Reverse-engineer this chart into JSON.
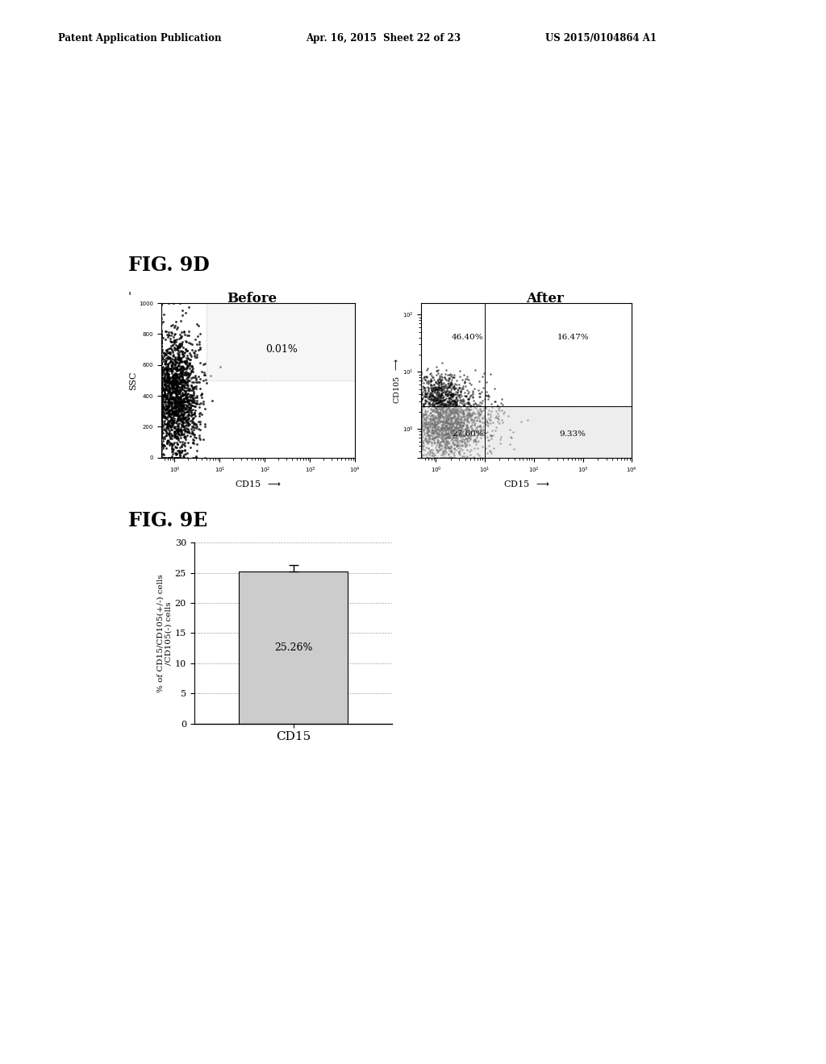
{
  "header_left": "Patent Application Publication",
  "header_mid": "Apr. 16, 2015  Sheet 22 of 23",
  "header_right": "US 2015/0104864 A1",
  "fig9d_label": "FIG. 9D",
  "fig9e_label": "FIG. 9E",
  "before_title": "Before",
  "after_title": "After",
  "before_pct": "0.01%",
  "after_pcts": [
    "46.40%",
    "16.47%",
    "27.60%",
    "9.33%"
  ],
  "before_xlabel": "CD15",
  "after_xlabel": "CD15",
  "before_ylabel": "SSC",
  "after_ylabel": "CD105",
  "bar_value": 25.26,
  "bar_label": "25.26%",
  "bar_xlabel": "CD15",
  "bar_ylabel": "% of CD15/CD105(+/-) cells\n/CD105(-) cells",
  "bar_ylim": [
    0,
    30
  ],
  "bar_yticks": [
    0,
    5,
    10,
    15,
    20,
    25,
    30
  ],
  "background_color": "#ffffff"
}
